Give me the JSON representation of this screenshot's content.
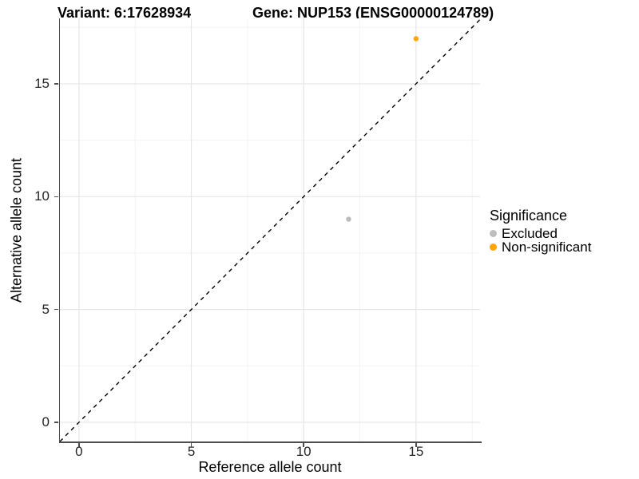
{
  "chart_data": {
    "type": "scatter",
    "titles": {
      "left": "Variant: 6:17628934",
      "right": "Gene: NUP153 (ENSG00000124789)"
    },
    "xlabel": "Reference allele count",
    "ylabel": "Alternative allele count",
    "x_range": [
      -0.85,
      17.85
    ],
    "y_range": [
      -0.85,
      17.9
    ],
    "x_ticks": [
      0,
      5,
      10,
      15
    ],
    "y_ticks": [
      0,
      5,
      10,
      15
    ],
    "x_minor_gridlines": [
      2.5,
      7.5,
      12.5,
      17.5
    ],
    "y_minor_gridlines": [
      2.5,
      7.5,
      12.5,
      17.5
    ],
    "grid": "on",
    "legend": {
      "title": "Significance",
      "position": "right"
    },
    "reference_line": {
      "type": "identity",
      "slope": 1,
      "intercept": 0,
      "style": "dashed",
      "color": "#000000"
    },
    "series": [
      {
        "name": "Excluded",
        "color": "#BDBDBD",
        "points": [
          {
            "x": 12,
            "y": 9
          }
        ]
      },
      {
        "name": "Non-significant",
        "color": "#FFA500",
        "points": [
          {
            "x": 15,
            "y": 17
          }
        ]
      }
    ],
    "colors": {
      "grid_major": "#E6E6E6",
      "grid_minor": "#F3F3F3",
      "axis_line": "#4D4D4D",
      "tick_text": "#262626",
      "title_text": "#000000"
    }
  }
}
